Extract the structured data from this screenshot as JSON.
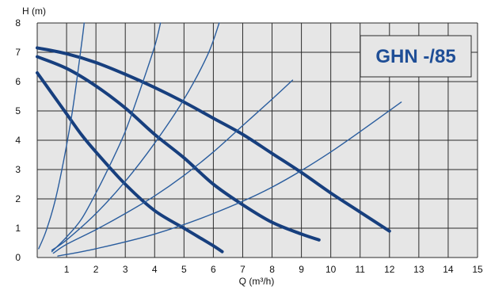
{
  "chart_data": {
    "type": "line",
    "title": "GHN -/85",
    "xlabel": "Q (m³/h)",
    "ylabel": "H (m)",
    "xlim": [
      0,
      15
    ],
    "ylim": [
      0,
      8
    ],
    "xticks": [
      "1",
      "2",
      "3",
      "4",
      "5",
      "6",
      "7",
      "8",
      "9",
      "10",
      "11",
      "12",
      "13",
      "14",
      "15"
    ],
    "yticks": [
      "0",
      "1",
      "2",
      "3",
      "4",
      "5",
      "6",
      "7",
      "8"
    ],
    "grid": true,
    "legend": "none",
    "colors": {
      "pump_curve": "#173f7e",
      "system_curve": "#2a5d9e",
      "plot_bg": "#e6e6e6",
      "grid": "#2b2b2b",
      "title": "#1f4e96"
    },
    "series": [
      {
        "kind": "pump",
        "x": [
          0,
          1,
          2,
          3,
          4,
          5,
          6,
          7,
          8,
          9,
          10,
          11,
          12
        ],
        "y": [
          7.15,
          6.95,
          6.65,
          6.25,
          5.8,
          5.3,
          4.75,
          4.2,
          3.55,
          2.9,
          2.2,
          1.55,
          0.9
        ]
      },
      {
        "kind": "pump",
        "x": [
          0,
          1,
          2,
          3,
          4,
          5,
          6,
          7,
          8,
          9,
          9.6
        ],
        "y": [
          6.85,
          6.45,
          5.85,
          5.1,
          4.2,
          3.4,
          2.5,
          1.8,
          1.2,
          0.8,
          0.6
        ]
      },
      {
        "kind": "pump",
        "x": [
          0,
          0.5,
          1,
          1.5,
          2,
          3,
          4,
          5,
          5.5,
          6,
          6.3
        ],
        "y": [
          6.3,
          5.6,
          4.9,
          4.2,
          3.6,
          2.5,
          1.6,
          1.0,
          0.7,
          0.4,
          0.2
        ]
      },
      {
        "kind": "system",
        "x": [
          0.05,
          0.3,
          0.6,
          0.9,
          1.2,
          1.5,
          1.6
        ],
        "y": [
          0.3,
          0.9,
          1.9,
          3.3,
          5.0,
          7.2,
          8.0
        ]
      },
      {
        "kind": "system",
        "x": [
          0.5,
          1.0,
          1.5,
          2.0,
          2.5,
          3.0,
          3.5,
          4.0,
          4.2
        ],
        "y": [
          0.2,
          0.7,
          1.3,
          2.2,
          3.2,
          4.3,
          5.7,
          7.2,
          8.0
        ]
      },
      {
        "kind": "system",
        "x": [
          0.5,
          1.0,
          2.0,
          3.0,
          4.0,
          5.0,
          5.8,
          6.2
        ],
        "y": [
          0.25,
          0.6,
          1.5,
          2.6,
          3.9,
          5.4,
          6.9,
          8.0
        ]
      },
      {
        "kind": "system",
        "x": [
          0.55,
          1.0,
          2.0,
          3.0,
          4.0,
          5.0,
          6.0,
          7.0,
          8.0,
          8.7
        ],
        "y": [
          0.15,
          0.45,
          0.95,
          1.5,
          2.1,
          2.8,
          3.6,
          4.5,
          5.4,
          6.05
        ]
      },
      {
        "kind": "system",
        "x": [
          0.7,
          2.0,
          4.0,
          6.0,
          8.0,
          10.0,
          12.4
        ],
        "y": [
          0.05,
          0.3,
          0.8,
          1.5,
          2.4,
          3.6,
          5.3
        ]
      }
    ]
  }
}
